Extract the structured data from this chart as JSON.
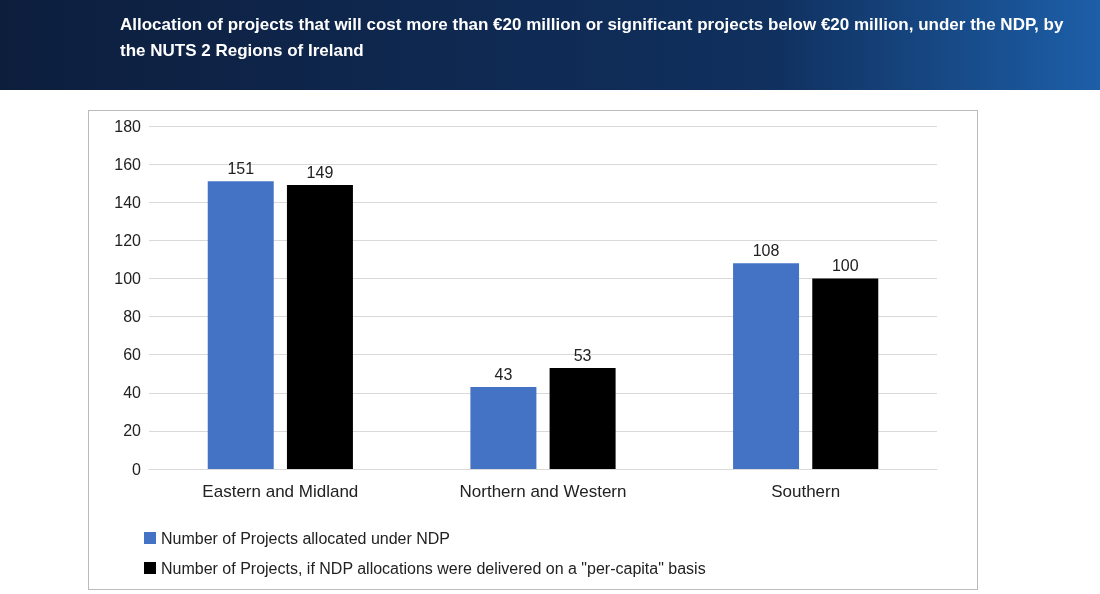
{
  "chart_data": {
    "type": "bar",
    "title": "Allocation of projects that will cost more than €20 million or significant projects below €20 million, under the NDP, by the NUTS 2 Regions of Ireland",
    "categories": [
      "Eastern and Midland",
      "Northern and Western",
      "Southern"
    ],
    "series": [
      {
        "name": "Number of Projects allocated under NDP",
        "color": "#4472c4",
        "values": [
          151,
          43,
          108
        ]
      },
      {
        "name": "Number of Projects, if NDP allocations were delivered on a \"per-capita\" basis",
        "color": "#000000",
        "values": [
          149,
          53,
          100
        ]
      }
    ],
    "ylim": [
      0,
      180
    ],
    "yticks": [
      0,
      20,
      40,
      60,
      80,
      100,
      120,
      140,
      160,
      180
    ],
    "grid": "y",
    "legend": "bottom left",
    "data_labels": true
  }
}
